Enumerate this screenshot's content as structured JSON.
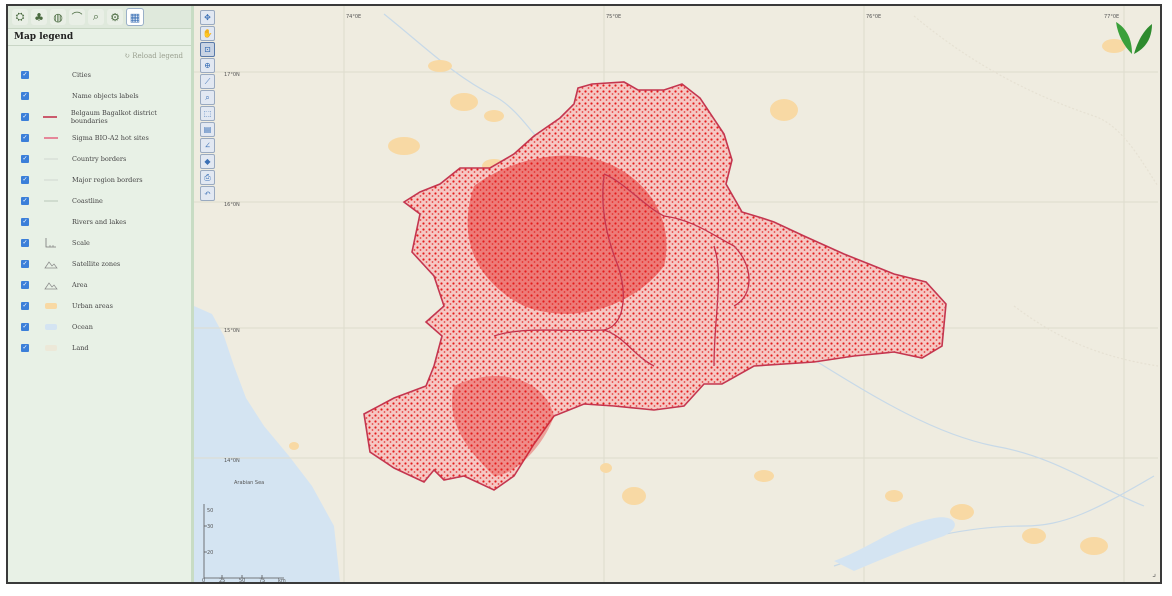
{
  "colors": {
    "accent": "#3b7fd9",
    "boundary": "#c4364f",
    "density": "#e41c1c",
    "urban": "#f8d9a4",
    "ocean": "#d4e4f2",
    "land": "#efece0"
  },
  "sidebar": {
    "tabs": [
      {
        "name": "layers-icon",
        "glyph": "⛭"
      },
      {
        "name": "tree-icon",
        "glyph": "♣"
      },
      {
        "name": "database-icon",
        "glyph": "◍"
      },
      {
        "name": "measure-icon",
        "glyph": "⌒"
      },
      {
        "name": "search-icon",
        "glyph": "⌕"
      },
      {
        "name": "gear-icon",
        "glyph": "⚙"
      },
      {
        "name": "legend-icon",
        "glyph": "▦"
      }
    ],
    "panel_title": "Map legend",
    "panel_subtitle": "↻ Reload legend",
    "legend_items": [
      {
        "label": "Cities",
        "symbol": "none"
      },
      {
        "label": "Name objects labels",
        "symbol": "none"
      },
      {
        "label": "Belgaum Bagalkot district boundaries",
        "symbol": "red-line"
      },
      {
        "label": "Sigma BIO-A2 hot sites",
        "symbol": "pink-line"
      },
      {
        "label": "Country borders",
        "symbol": "light-line"
      },
      {
        "label": "Major region borders",
        "symbol": "light-line"
      },
      {
        "label": "Coastline",
        "symbol": "light-line"
      },
      {
        "label": "Rivers and lakes",
        "symbol": "none"
      },
      {
        "label": "Scale",
        "symbol": "scale"
      },
      {
        "label": "Satellite zones",
        "symbol": "mountain"
      },
      {
        "label": "Area",
        "symbol": "mountain"
      },
      {
        "label": "Urban areas",
        "symbol": "urban"
      },
      {
        "label": "Ocean",
        "symbol": "ocean"
      },
      {
        "label": "Land",
        "symbol": "land"
      }
    ]
  },
  "map": {
    "tools": [
      {
        "name": "pan-arrows-icon",
        "glyph": "✥"
      },
      {
        "name": "hand-icon",
        "glyph": "✋"
      },
      {
        "name": "zoom-box-icon",
        "glyph": "⊡"
      },
      {
        "name": "zoom-in-icon",
        "glyph": "⊕"
      },
      {
        "name": "ruler-icon",
        "glyph": "⟋"
      },
      {
        "name": "magnify-icon",
        "glyph": "⌕"
      },
      {
        "name": "select-icon",
        "glyph": "⬚"
      },
      {
        "name": "page-icon",
        "glyph": "▤"
      },
      {
        "name": "line-tool-icon",
        "glyph": "∠"
      },
      {
        "name": "marker-icon",
        "glyph": "◆"
      },
      {
        "name": "print-icon",
        "glyph": "⎙"
      },
      {
        "name": "undo-icon",
        "glyph": "↶"
      }
    ],
    "grid_labels_top": [
      "74°0E",
      "75°0E",
      "76°0E",
      "77°0E"
    ],
    "grid_labels_left": [
      "17°0N",
      "16°0N",
      "15°0N",
      "14°0N"
    ],
    "place_label": "Arabian Sea",
    "scale_ticks": [
      "0",
      "25",
      "50",
      "75",
      "km"
    ],
    "scale_vertical": [
      "50",
      "30",
      "20"
    ]
  }
}
